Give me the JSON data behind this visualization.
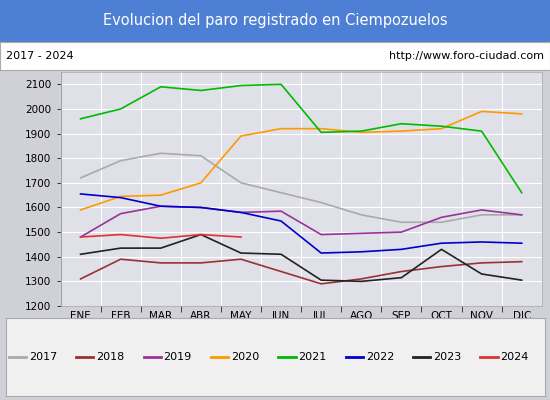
{
  "title": "Evolucion del paro registrado en Ciempozuelos",
  "title_bgcolor": "#4d7fd4",
  "title_color": "white",
  "subtitle_left": "2017 - 2024",
  "subtitle_right": "http://www.foro-ciudad.com",
  "months": [
    "ENE",
    "FEB",
    "MAR",
    "ABR",
    "MAY",
    "JUN",
    "JUL",
    "AGO",
    "SEP",
    "OCT",
    "NOV",
    "DIC"
  ],
  "ylim": [
    1200,
    2150
  ],
  "yticks": [
    1200,
    1300,
    1400,
    1500,
    1600,
    1700,
    1800,
    1900,
    2000,
    2100
  ],
  "series": {
    "2017": {
      "color": "#aaaaaa",
      "data": [
        1720,
        1790,
        1820,
        1810,
        1700,
        1660,
        1620,
        1570,
        1540,
        1540,
        1570,
        1570
      ]
    },
    "2018": {
      "color": "#993333",
      "data": [
        1310,
        1390,
        1375,
        1375,
        1390,
        1340,
        1290,
        1310,
        1340,
        1360,
        1375,
        1380
      ]
    },
    "2019": {
      "color": "#993399",
      "data": [
        1480,
        1575,
        1605,
        1600,
        1580,
        1585,
        1490,
        1495,
        1500,
        1560,
        1590,
        1570
      ]
    },
    "2020": {
      "color": "#ff9900",
      "data": [
        1590,
        1645,
        1650,
        1700,
        1890,
        1920,
        1920,
        1905,
        1910,
        1920,
        1990,
        1980
      ]
    },
    "2021": {
      "color": "#00bb00",
      "data": [
        1960,
        2000,
        2090,
        2075,
        2095,
        2100,
        1905,
        1910,
        1940,
        1930,
        1910,
        1660
      ]
    },
    "2022": {
      "color": "#0000cc",
      "data": [
        1655,
        1640,
        1605,
        1600,
        1580,
        1545,
        1415,
        1420,
        1430,
        1455,
        1460,
        1455
      ]
    },
    "2023": {
      "color": "#222222",
      "data": [
        1410,
        1435,
        1435,
        1490,
        1415,
        1410,
        1305,
        1300,
        1315,
        1430,
        1330,
        1305
      ]
    },
    "2024": {
      "color": "#dd3333",
      "data": [
        1480,
        1490,
        1475,
        1490,
        1480,
        null,
        null,
        null,
        null,
        null,
        null,
        null
      ]
    }
  },
  "bg_plot": "#e0e0e8",
  "grid_color": "white",
  "legend_bgcolor": "#f0f0f0",
  "legend_border": "#aaaaaa",
  "fig_bgcolor": "#d0d0d8"
}
